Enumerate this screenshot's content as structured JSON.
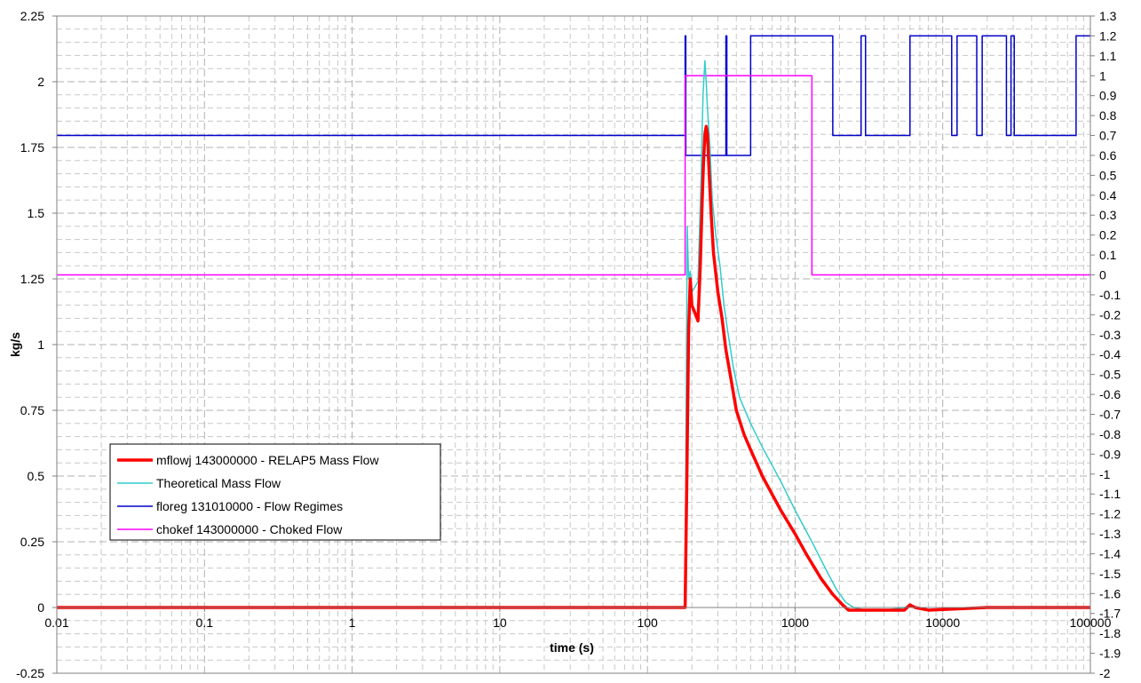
{
  "chart_data": {
    "type": "line",
    "title": "",
    "xlabel": "time (s)",
    "ylabel": "kg/s",
    "x_scale": "log",
    "xlim": [
      0.01,
      100000
    ],
    "ylim": [
      -0.25,
      2.25
    ],
    "y2lim": [
      -2,
      1.3
    ],
    "grid": true,
    "legend_position": "lower-left",
    "x_ticks": [
      "0.01",
      "0.1",
      "1",
      "10",
      "100",
      "1000",
      "10000",
      "100000"
    ],
    "y_ticks": [
      "-0.25",
      "0",
      "0.25",
      "0.5",
      "0.75",
      "1",
      "1.25",
      "1.5",
      "1.75",
      "2",
      "2.25"
    ],
    "y2_ticks": [
      "-2",
      "-1.9",
      "-1.8",
      "-1.7",
      "-1.6",
      "-1.5",
      "-1.4",
      "-1.3",
      "-1.2",
      "-1.1",
      "-1",
      "-0.9",
      "-0.8",
      "-0.7",
      "-0.6",
      "-0.5",
      "-0.4",
      "-0.3",
      "-0.2",
      "-0.1",
      "0",
      "0.1",
      "0.2",
      "0.3",
      "0.4",
      "0.5",
      "0.6",
      "0.7",
      "0.8",
      "0.9",
      "1",
      "1.1",
      "1.2",
      "1.3"
    ],
    "series": [
      {
        "name": "mflowj 143000000 - RELAP5 Mass Flow",
        "color": "#ff0000",
        "axis": "left",
        "x": [
          0.01,
          180,
          185,
          190,
          195,
          200,
          210,
          220,
          228,
          235,
          240,
          245,
          250,
          255,
          262,
          270,
          280,
          300,
          320,
          340,
          360,
          400,
          450,
          500,
          600,
          700,
          800,
          1000,
          1200,
          1500,
          1800,
          2100,
          2300,
          2500,
          3000,
          4000,
          5500,
          6000,
          6500,
          8000,
          20000,
          100000
        ],
        "values": [
          0,
          0,
          0.5,
          1.05,
          1.25,
          1.15,
          1.12,
          1.09,
          1.3,
          1.55,
          1.7,
          1.8,
          1.83,
          1.8,
          1.65,
          1.5,
          1.35,
          1.2,
          1.1,
          0.98,
          0.9,
          0.75,
          0.66,
          0.6,
          0.5,
          0.43,
          0.37,
          0.28,
          0.2,
          0.11,
          0.05,
          0.01,
          -0.01,
          -0.01,
          -0.01,
          -0.01,
          -0.01,
          0.01,
          0,
          -0.01,
          0,
          0
        ]
      },
      {
        "name": "Theoretical Mass Flow",
        "color": "#33cccc",
        "axis": "left",
        "x": [
          0.01,
          180,
          183,
          186,
          190,
          195,
          200,
          210,
          220,
          230,
          238,
          245,
          250,
          255,
          265,
          275,
          290,
          310,
          330,
          350,
          380,
          420,
          500,
          600,
          800,
          1000,
          1300,
          1600,
          1900,
          2200,
          2500,
          3000,
          4000,
          5500,
          6000,
          6500,
          8000,
          20000,
          100000
        ],
        "values": [
          0,
          0,
          0.8,
          1.45,
          1.25,
          1.28,
          1.2,
          1.22,
          1.24,
          1.6,
          1.95,
          2.08,
          2.0,
          1.9,
          1.75,
          1.55,
          1.42,
          1.3,
          1.15,
          1.05,
          0.92,
          0.8,
          0.7,
          0.61,
          0.48,
          0.37,
          0.25,
          0.15,
          0.07,
          0.02,
          0,
          -0.01,
          -0.01,
          0,
          0.01,
          0,
          -0.01,
          0,
          0
        ]
      },
      {
        "name": "floreg 131010000 - Flow Regimes",
        "color": "#0000cc",
        "axis": "right",
        "x": [
          0.01,
          180,
          180,
          182,
          182,
          340,
          340,
          345,
          345,
          500,
          500,
          1800,
          1800,
          2800,
          2800,
          3000,
          3000,
          6000,
          6000,
          11500,
          11500,
          12500,
          12500,
          17000,
          17000,
          18500,
          18500,
          27000,
          27000,
          29000,
          29000,
          30500,
          30500,
          80000,
          80000,
          100000
        ],
        "values": [
          0.7,
          0.7,
          1.2,
          1.2,
          0.6,
          0.6,
          1.2,
          1.2,
          0.6,
          0.6,
          1.2,
          1.2,
          0.7,
          0.7,
          1.2,
          1.2,
          0.7,
          0.7,
          1.2,
          1.2,
          0.7,
          0.7,
          1.2,
          1.2,
          0.7,
          0.7,
          1.2,
          1.2,
          0.7,
          0.7,
          1.2,
          1.2,
          0.7,
          0.7,
          1.2,
          1.2
        ]
      },
      {
        "name": "chokef 143000000 - Choked Flow",
        "color": "#ff00ff",
        "axis": "right",
        "x": [
          0.01,
          180,
          180,
          1300,
          1300,
          100000
        ],
        "values": [
          0,
          0,
          1,
          1,
          0,
          0
        ]
      }
    ]
  }
}
